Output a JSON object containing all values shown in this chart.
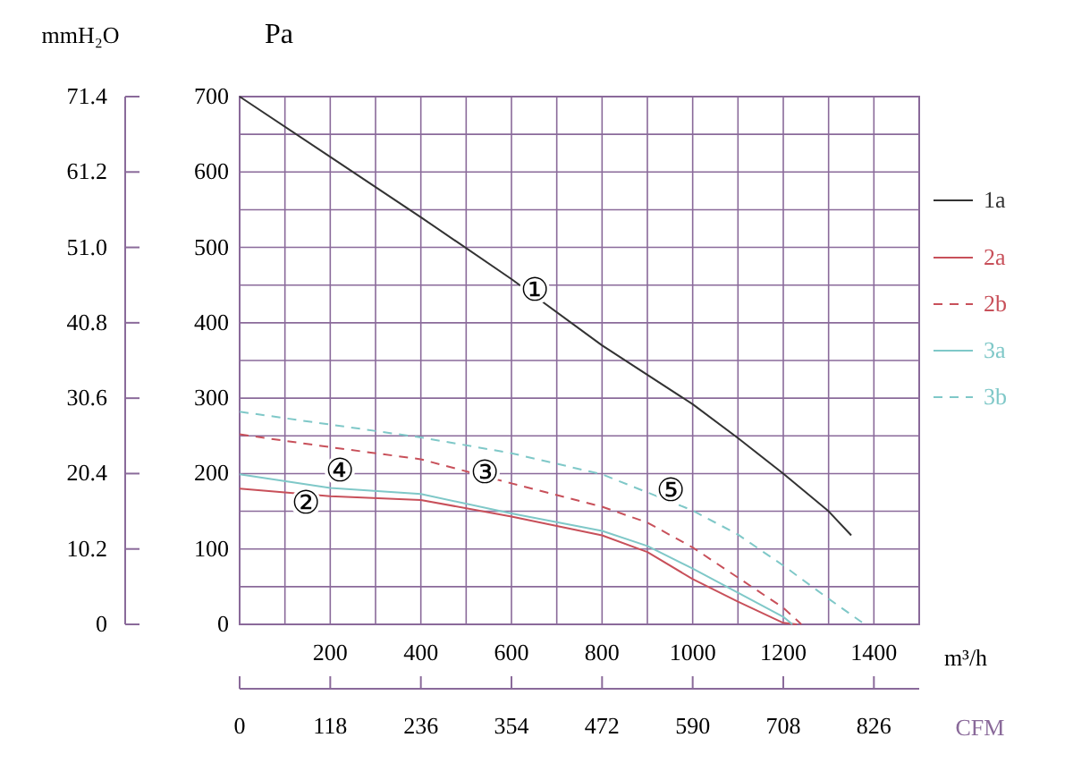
{
  "chart_data": {
    "type": "line",
    "ylabel": "Pa",
    "y2label": "mmH₂O",
    "xlabel": "m³/h",
    "x2label": "CFM",
    "xlim": [
      0,
      1500
    ],
    "xticks": [
      {
        "value": 100,
        "label": null
      },
      200,
      {
        "value": 300,
        "label": null
      },
      400,
      {
        "value": 500,
        "label": null
      },
      600,
      {
        "value": 700,
        "label": null
      },
      800,
      {
        "value": 900,
        "label": null
      },
      1000,
      {
        "value": 1100,
        "label": null
      },
      1200,
      {
        "value": 1300,
        "label": null
      },
      1400,
      {
        "value": 1500,
        "label": null
      }
    ],
    "ylim": [
      0,
      700
    ],
    "yticks": [
      0,
      {
        "value": 50,
        "label": null
      },
      100,
      {
        "value": 150,
        "label": null
      },
      200,
      {
        "value": 250,
        "label": null
      },
      300,
      {
        "value": 350,
        "label": null
      },
      400,
      {
        "value": 450,
        "label": null
      },
      500,
      {
        "value": 550,
        "label": null
      },
      600,
      {
        "value": 650,
        "label": null
      },
      700
    ],
    "y2lim": [
      0,
      71.4
    ],
    "y2ticks": [
      0,
      10.2,
      20.4,
      30.6,
      40.8,
      {
        "value": 51,
        "label": "51.0"
      },
      61.2,
      71.4
    ],
    "x2lim": [
      0,
      885
    ],
    "x2ticks": [
      0,
      118,
      236,
      354,
      472,
      590,
      708,
      826
    ],
    "grid": true,
    "legend": "right",
    "series": [
      {
        "name": "1a",
        "color": "#333333",
        "line_style": "solid",
        "x": [
          0,
          200,
          400,
          600,
          800,
          1000,
          1100,
          1200,
          1300,
          1350
        ],
        "values": [
          700,
          620,
          540,
          458,
          370,
          292,
          247,
          200,
          150,
          118
        ]
      },
      {
        "name": "2a",
        "color": "#c8505a",
        "line_style": "solid",
        "x": [
          0,
          200,
          400,
          600,
          800,
          900,
          1000,
          1100,
          1200,
          1230
        ],
        "values": [
          180,
          170,
          165,
          143,
          118,
          96,
          60,
          30,
          2,
          0
        ]
      },
      {
        "name": "2b",
        "color": "#c8505a",
        "line_style": "dashed",
        "x": [
          0,
          200,
          400,
          600,
          800,
          900,
          1000,
          1100,
          1200,
          1240
        ],
        "values": [
          252,
          235,
          219,
          187,
          156,
          135,
          102,
          62,
          22,
          0
        ]
      },
      {
        "name": "3a",
        "color": "#7fc8c8",
        "line_style": "solid",
        "x": [
          0,
          200,
          400,
          600,
          800,
          900,
          1000,
          1100,
          1200,
          1220
        ],
        "values": [
          199,
          181,
          173,
          147,
          124,
          104,
          74,
          42,
          10,
          0
        ]
      },
      {
        "name": "3b",
        "color": "#7fc8c8",
        "line_style": "dashed",
        "x": [
          0,
          200,
          400,
          600,
          800,
          1000,
          1100,
          1200,
          1300,
          1380
        ],
        "values": [
          282,
          265,
          248,
          227,
          199,
          151,
          119,
          78,
          34,
          0
        ]
      }
    ],
    "annotations": [
      "①",
      "②",
      "③",
      "④",
      "⑤"
    ]
  }
}
